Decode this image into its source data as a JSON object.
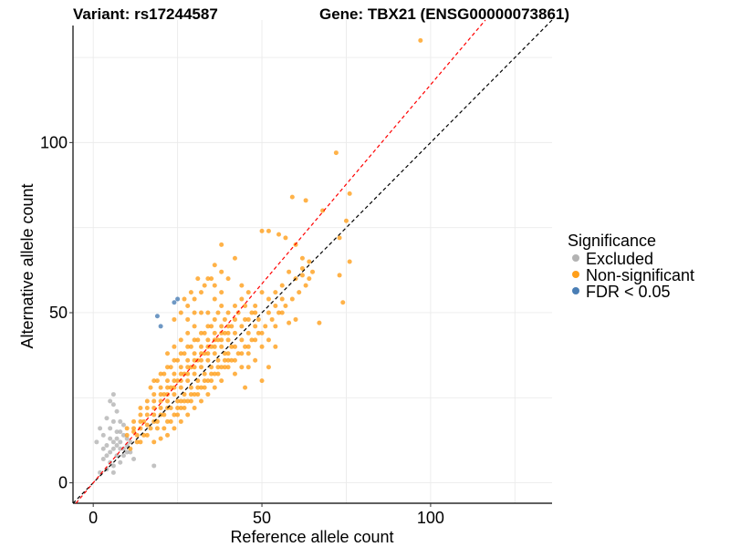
{
  "chart_data": {
    "type": "scatter",
    "title_left": "Variant: rs17244587",
    "title_right": "Gene: TBX21 (ENSG00000073861)",
    "xlabel": "Reference allele count",
    "ylabel": "Alternative allele count",
    "xlim": [
      -6,
      136
    ],
    "ylim": [
      -6,
      136
    ],
    "x_ticks": [
      0,
      50,
      100
    ],
    "y_ticks": [
      0,
      50,
      100
    ],
    "x_tick_labels": [
      "0",
      "50",
      "100"
    ],
    "y_tick_labels": [
      "0",
      "50",
      "100"
    ],
    "grid": true,
    "legend": {
      "title": "Significance",
      "placement": "right",
      "entries": [
        {
          "label": "Excluded",
          "color": "#b3b3b3"
        },
        {
          "label": "Non-significant",
          "color": "#ff9f1a"
        },
        {
          "label": "FDR < 0.05",
          "color": "#4a7eb5"
        }
      ]
    },
    "reference_lines": [
      {
        "style": "dashed",
        "color": "#000000",
        "slope": 1.0,
        "intercept": 0
      },
      {
        "style": "dashed",
        "color": "#ff0000",
        "slope": 1.17,
        "intercept": 0
      }
    ],
    "series": [
      {
        "name": "Excluded",
        "color": "#b3b3b3",
        "points": [
          [
            6,
            26
          ],
          [
            5,
            24
          ],
          [
            6,
            23
          ],
          [
            7,
            21
          ],
          [
            4,
            19
          ],
          [
            6,
            18
          ],
          [
            8,
            18
          ],
          [
            2,
            16
          ],
          [
            5,
            16
          ],
          [
            7,
            15
          ],
          [
            9,
            17
          ],
          [
            3,
            14
          ],
          [
            5,
            13
          ],
          [
            6,
            12
          ],
          [
            8,
            12
          ],
          [
            9,
            14
          ],
          [
            4,
            11
          ],
          [
            6,
            10
          ],
          [
            8,
            10
          ],
          [
            10,
            11
          ],
          [
            11,
            12
          ],
          [
            5,
            9
          ],
          [
            7,
            8
          ],
          [
            9,
            8
          ],
          [
            10,
            9
          ],
          [
            3,
            7
          ],
          [
            5,
            6
          ],
          [
            6,
            5
          ],
          [
            8,
            6
          ],
          [
            4,
            4
          ],
          [
            2,
            3
          ],
          [
            6,
            3
          ],
          [
            18,
            5
          ],
          [
            12,
            7
          ],
          [
            1,
            12
          ],
          [
            4,
            8
          ],
          [
            7,
            11
          ],
          [
            10,
            13
          ],
          [
            9,
            10
          ],
          [
            7,
            13
          ],
          [
            3,
            10
          ],
          [
            11,
            9
          ],
          [
            8,
            15
          ]
        ]
      },
      {
        "name": "FDR < 0.05",
        "color": "#4a7eb5",
        "points": [
          [
            19,
            49
          ],
          [
            20,
            46
          ],
          [
            24,
            53
          ],
          [
            25,
            54
          ]
        ]
      },
      {
        "name": "Non-significant",
        "color": "#ff9f1a",
        "points": [
          [
            97,
            130
          ],
          [
            72,
            97
          ],
          [
            76,
            85
          ],
          [
            75,
            77
          ],
          [
            73,
            72
          ],
          [
            76,
            65
          ],
          [
            73,
            61
          ],
          [
            74,
            53
          ],
          [
            68,
            80
          ],
          [
            67,
            47
          ],
          [
            59,
            84
          ],
          [
            63,
            83
          ],
          [
            50,
            74
          ],
          [
            52,
            74
          ],
          [
            55,
            73
          ],
          [
            57,
            72
          ],
          [
            60,
            70
          ],
          [
            62,
            66
          ],
          [
            64,
            65
          ],
          [
            58,
            62
          ],
          [
            60,
            60
          ],
          [
            62,
            61
          ],
          [
            56,
            58
          ],
          [
            54,
            56
          ],
          [
            52,
            54
          ],
          [
            50,
            56
          ],
          [
            48,
            52
          ],
          [
            45,
            52
          ],
          [
            56,
            50
          ],
          [
            58,
            47
          ],
          [
            60,
            48
          ],
          [
            54,
            46
          ],
          [
            38,
            70
          ],
          [
            42,
            66
          ],
          [
            40,
            60
          ],
          [
            44,
            58
          ],
          [
            46,
            56
          ],
          [
            38,
            56
          ],
          [
            36,
            58
          ],
          [
            34,
            60
          ],
          [
            32,
            56
          ],
          [
            30,
            54
          ],
          [
            28,
            52
          ],
          [
            26,
            50
          ],
          [
            24,
            48
          ],
          [
            36,
            54
          ],
          [
            38,
            52
          ],
          [
            40,
            50
          ],
          [
            42,
            48
          ],
          [
            44,
            46
          ],
          [
            46,
            44
          ],
          [
            48,
            42
          ],
          [
            50,
            40
          ],
          [
            44,
            38
          ],
          [
            46,
            34
          ],
          [
            40,
            34
          ],
          [
            42,
            32
          ],
          [
            38,
            30
          ],
          [
            36,
            28
          ],
          [
            34,
            26
          ],
          [
            45,
            28
          ],
          [
            50,
            30
          ],
          [
            52,
            34
          ],
          [
            26,
            24
          ],
          [
            22,
            22
          ],
          [
            20,
            20
          ],
          [
            18,
            18
          ],
          [
            16,
            17
          ],
          [
            14,
            16
          ],
          [
            12,
            15
          ],
          [
            10,
            14
          ],
          [
            16,
            14
          ],
          [
            18,
            12
          ],
          [
            14,
            12
          ],
          [
            20,
            13
          ],
          [
            22,
            14
          ],
          [
            24,
            16
          ],
          [
            26,
            18
          ],
          [
            28,
            20
          ],
          [
            30,
            22
          ],
          [
            32,
            24
          ],
          [
            22,
            18
          ],
          [
            24,
            20
          ],
          [
            26,
            22
          ],
          [
            28,
            24
          ],
          [
            30,
            26
          ],
          [
            32,
            28
          ],
          [
            34,
            30
          ],
          [
            36,
            32
          ],
          [
            38,
            34
          ],
          [
            40,
            36
          ],
          [
            42,
            40
          ],
          [
            20,
            24
          ],
          [
            18,
            22
          ],
          [
            16,
            20
          ],
          [
            14,
            20
          ],
          [
            12,
            18
          ],
          [
            10,
            16
          ],
          [
            22,
            26
          ],
          [
            24,
            28
          ],
          [
            26,
            30
          ],
          [
            28,
            32
          ],
          [
            30,
            34
          ],
          [
            32,
            36
          ],
          [
            34,
            38
          ],
          [
            36,
            40
          ],
          [
            38,
            42
          ],
          [
            40,
            44
          ],
          [
            20,
            28
          ],
          [
            22,
            30
          ],
          [
            24,
            32
          ],
          [
            26,
            34
          ],
          [
            28,
            36
          ],
          [
            30,
            38
          ],
          [
            32,
            40
          ],
          [
            34,
            42
          ],
          [
            36,
            44
          ],
          [
            18,
            26
          ],
          [
            16,
            24
          ],
          [
            14,
            22
          ],
          [
            28,
            40
          ],
          [
            30,
            42
          ],
          [
            32,
            44
          ],
          [
            26,
            38
          ],
          [
            24,
            36
          ],
          [
            22,
            34
          ],
          [
            20,
            32
          ],
          [
            18,
            30
          ],
          [
            34,
            46
          ],
          [
            36,
            48
          ],
          [
            30,
            46
          ],
          [
            28,
            44
          ],
          [
            26,
            42
          ],
          [
            24,
            40
          ],
          [
            22,
            38
          ],
          [
            32,
            50
          ],
          [
            30,
            50
          ],
          [
            28,
            48
          ],
          [
            34,
            50
          ],
          [
            38,
            46
          ],
          [
            40,
            42
          ],
          [
            42,
            44
          ],
          [
            44,
            42
          ],
          [
            46,
            40
          ],
          [
            48,
            46
          ],
          [
            18,
            20
          ],
          [
            20,
            22
          ],
          [
            22,
            24
          ],
          [
            24,
            26
          ],
          [
            26,
            28
          ],
          [
            28,
            30
          ],
          [
            30,
            32
          ],
          [
            32,
            34
          ],
          [
            34,
            36
          ],
          [
            36,
            38
          ],
          [
            38,
            40
          ],
          [
            40,
            38
          ],
          [
            42,
            36
          ],
          [
            44,
            34
          ],
          [
            46,
            38
          ],
          [
            48,
            36
          ],
          [
            50,
            44
          ],
          [
            52,
            42
          ],
          [
            54,
            40
          ],
          [
            35,
            34
          ],
          [
            37,
            36
          ],
          [
            39,
            38
          ],
          [
            41,
            40
          ],
          [
            33,
            32
          ],
          [
            31,
            30
          ],
          [
            29,
            28
          ],
          [
            27,
            26
          ],
          [
            25,
            24
          ],
          [
            23,
            22
          ],
          [
            21,
            20
          ],
          [
            19,
            18
          ],
          [
            17,
            16
          ],
          [
            15,
            14
          ],
          [
            13,
            12
          ],
          [
            11,
            10
          ],
          [
            21,
            26
          ],
          [
            23,
            28
          ],
          [
            25,
            30
          ],
          [
            27,
            32
          ],
          [
            29,
            34
          ],
          [
            31,
            36
          ],
          [
            33,
            38
          ],
          [
            35,
            40
          ],
          [
            37,
            42
          ],
          [
            39,
            44
          ],
          [
            17,
            28
          ],
          [
            19,
            30
          ],
          [
            21,
            32
          ],
          [
            23,
            34
          ],
          [
            25,
            36
          ],
          [
            27,
            38
          ],
          [
            29,
            40
          ],
          [
            31,
            42
          ],
          [
            33,
            44
          ],
          [
            35,
            46
          ],
          [
            15,
            18
          ],
          [
            13,
            14
          ],
          [
            19,
            16
          ],
          [
            21,
            16
          ],
          [
            23,
            18
          ],
          [
            25,
            20
          ],
          [
            27,
            22
          ],
          [
            29,
            24
          ],
          [
            31,
            26
          ],
          [
            33,
            28
          ],
          [
            35,
            30
          ],
          [
            37,
            32
          ],
          [
            39,
            34
          ],
          [
            41,
            36
          ],
          [
            43,
            38
          ],
          [
            45,
            40
          ],
          [
            47,
            42
          ],
          [
            49,
            44
          ],
          [
            36,
            64
          ],
          [
            38,
            62
          ],
          [
            35,
            60
          ],
          [
            33,
            58
          ],
          [
            31,
            60
          ],
          [
            29,
            56
          ],
          [
            27,
            54
          ],
          [
            37,
            50
          ],
          [
            39,
            48
          ],
          [
            41,
            46
          ],
          [
            43,
            50
          ],
          [
            45,
            48
          ],
          [
            47,
            50
          ],
          [
            49,
            48
          ],
          [
            51,
            46
          ],
          [
            53,
            48
          ],
          [
            55,
            50
          ],
          [
            57,
            52
          ],
          [
            59,
            54
          ],
          [
            61,
            56
          ],
          [
            63,
            58
          ],
          [
            65,
            62
          ],
          [
            64,
            60
          ],
          [
            62,
            63
          ],
          [
            25,
            22
          ],
          [
            27,
            24
          ],
          [
            29,
            26
          ],
          [
            31,
            28
          ],
          [
            33,
            30
          ],
          [
            35,
            32
          ],
          [
            37,
            34
          ],
          [
            39,
            36
          ],
          [
            16,
            22
          ],
          [
            14,
            18
          ],
          [
            12,
            16
          ],
          [
            18,
            24
          ],
          [
            20,
            26
          ],
          [
            22,
            28
          ],
          [
            24,
            30
          ],
          [
            26,
            32
          ],
          [
            28,
            34
          ],
          [
            30,
            36
          ],
          [
            32,
            38
          ],
          [
            34,
            40
          ],
          [
            36,
            42
          ],
          [
            38,
            44
          ],
          [
            40,
            46
          ],
          [
            42,
            52
          ],
          [
            44,
            54
          ],
          [
            46,
            48
          ],
          [
            48,
            50
          ],
          [
            52,
            50
          ],
          [
            54,
            52
          ],
          [
            56,
            54
          ]
        ]
      }
    ]
  }
}
